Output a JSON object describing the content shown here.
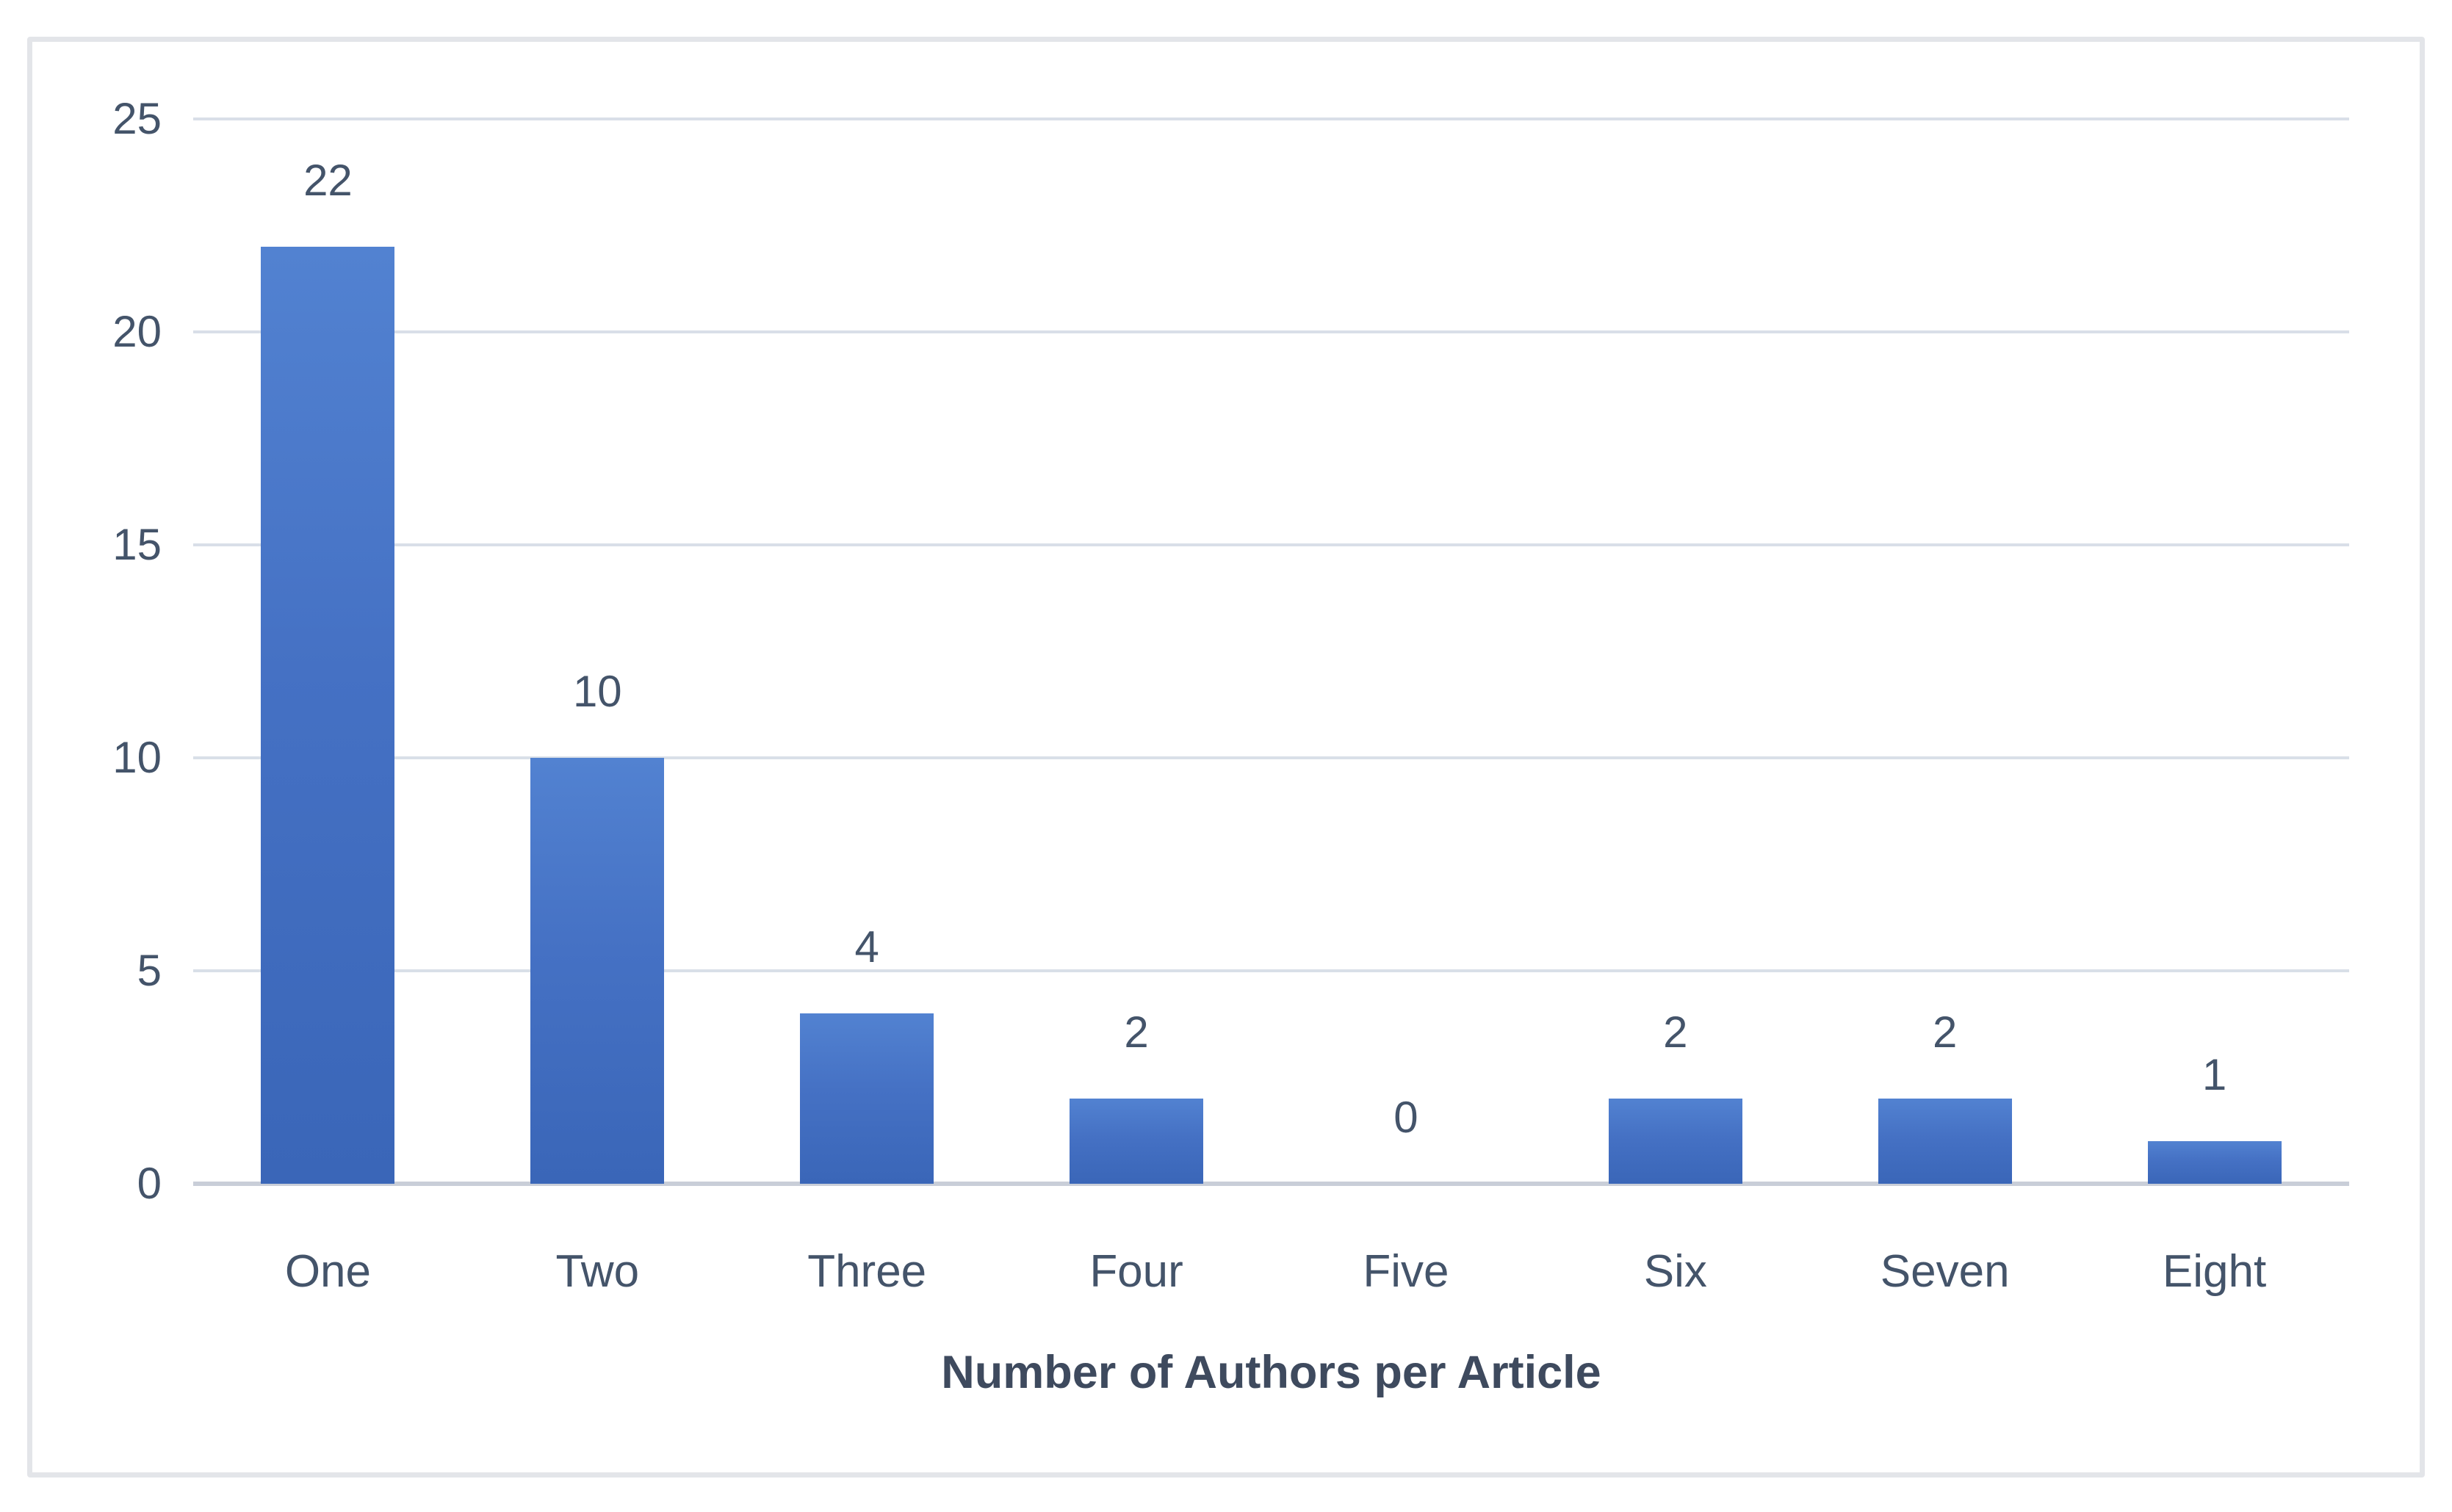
{
  "chart_data": {
    "type": "bar",
    "title": "",
    "categories": [
      "One",
      "Two",
      "Three",
      "Four",
      "Five",
      "Six",
      "Seven",
      "Eight"
    ],
    "values": [
      22,
      10,
      4,
      2,
      0,
      2,
      2,
      1
    ],
    "value_labels": [
      "22",
      "10",
      "4",
      "2",
      "0",
      "2",
      "2",
      "1"
    ],
    "xlabel": "Number of Authors per Article",
    "ylabel": "",
    "ylim": [
      0,
      25
    ],
    "yticks": [
      0,
      5,
      10,
      15,
      20,
      25
    ],
    "ytick_labels": [
      "0",
      "5",
      "10",
      "15",
      "20",
      "25"
    ],
    "grid": true,
    "legend": false,
    "colors": {
      "bar_gradient_top": "#5282d1",
      "bar_gradient_bottom": "#3a66b8",
      "gridline": "#d9dfe8",
      "axis_line": "#c9ced8",
      "tick_text": "#44546a",
      "axis_title_text": "#3e4a5e",
      "frame_border": "#e3e5e9",
      "background": "#ffffff"
    }
  }
}
